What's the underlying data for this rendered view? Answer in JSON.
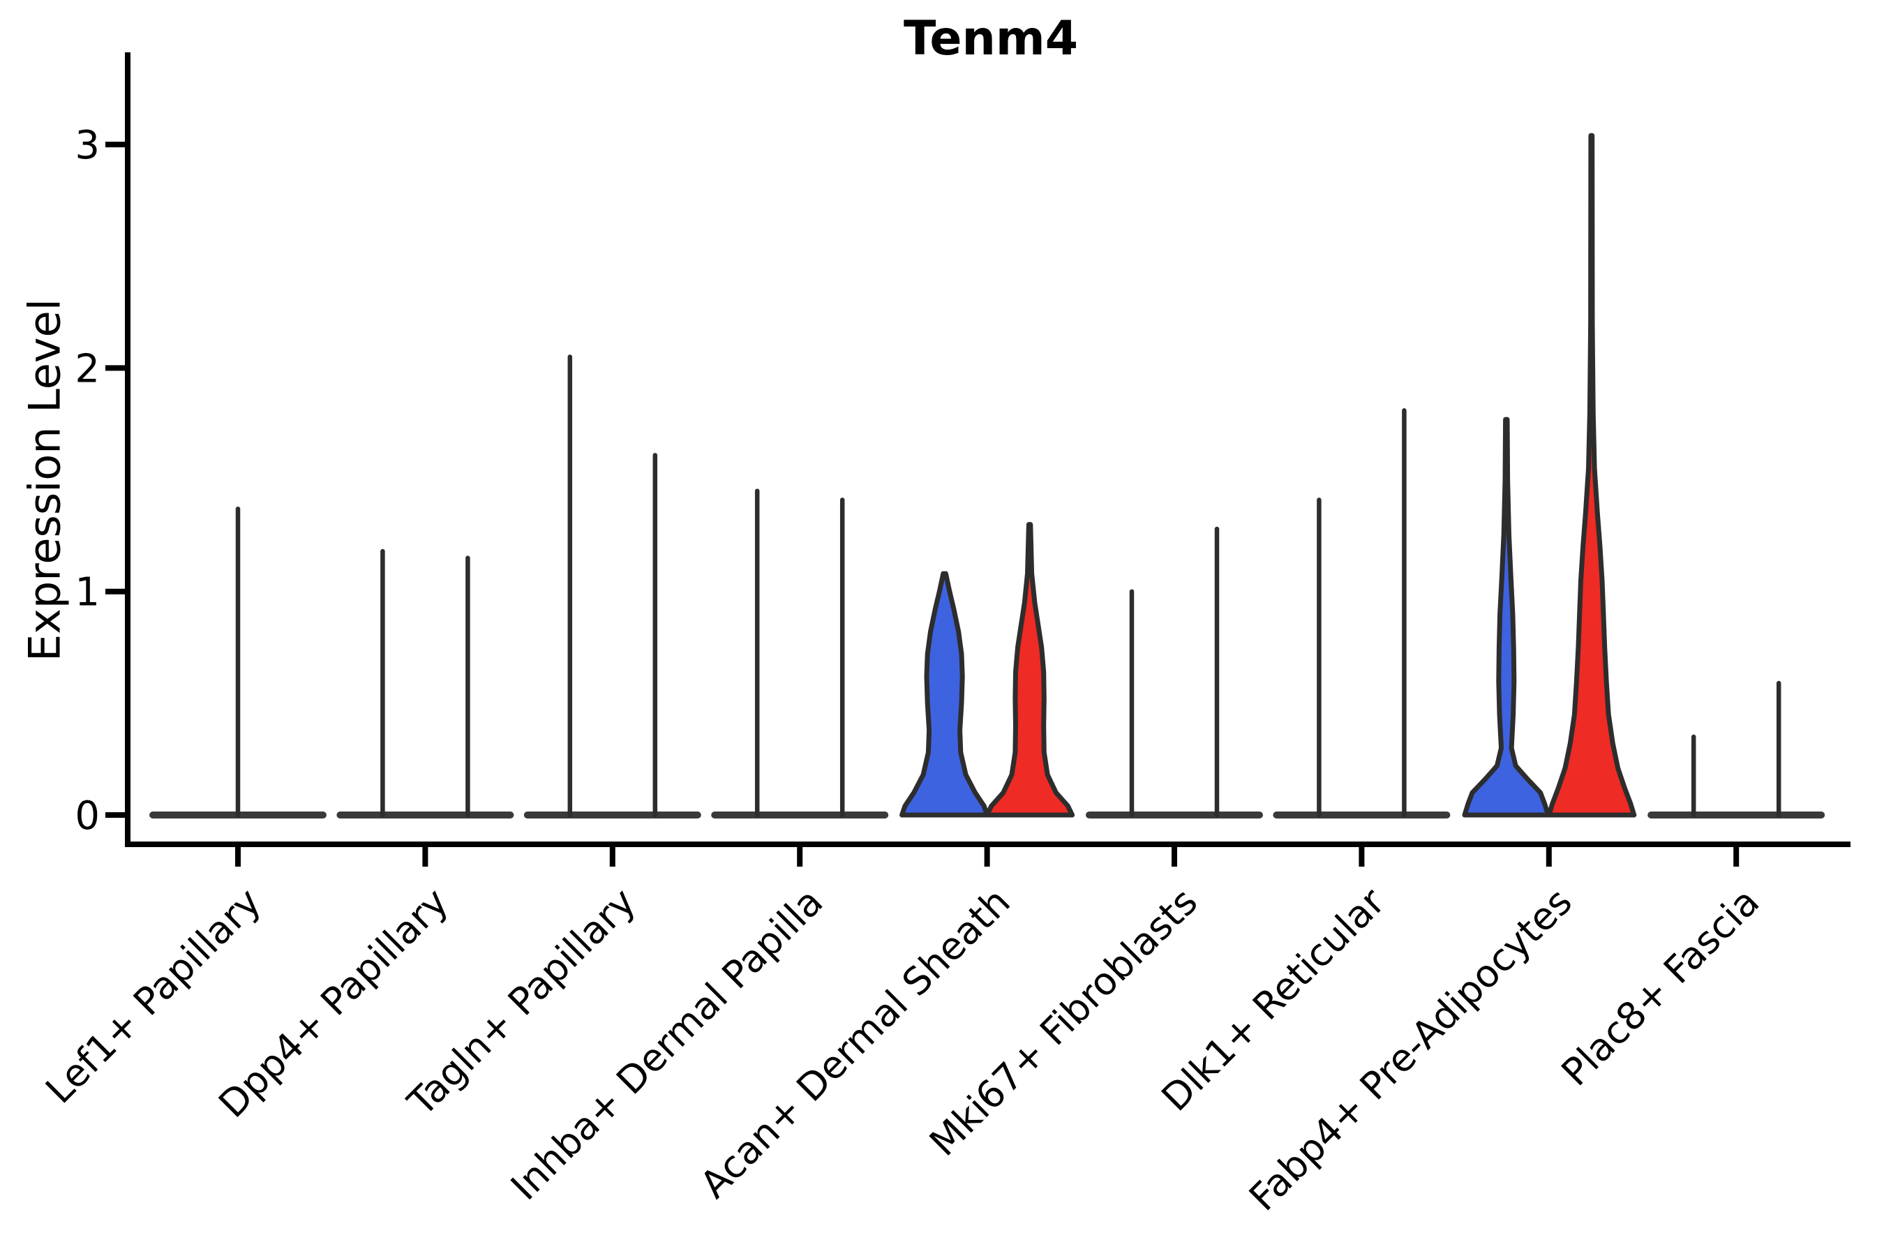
{
  "title": "Tenm4",
  "axes": {
    "ylabel": "Expression Level",
    "ytick_labels": [
      "0",
      "1",
      "2",
      "3"
    ]
  },
  "colors": {
    "blue": "#3E63E0",
    "red": "#EE2B24",
    "outline": "#2D2D2D",
    "baseline": "#3A3A3A",
    "spine": "#000000",
    "text": "#000000",
    "background": "#FFFFFF"
  },
  "chart_data": {
    "type": "violin",
    "title": "Tenm4",
    "xlabel": "",
    "ylabel": "Expression Level",
    "ylim": [
      -0.05,
      3.15
    ],
    "yticks": [
      0,
      1,
      2,
      3
    ],
    "grid": false,
    "legend": "none (two unlabeled conditions: blue, red)",
    "categories": [
      "Lef1+ Papillary",
      "Dpp4+ Papillary",
      "Tagln+ Papillary",
      "Inhba+ Dermal Papilla",
      "Acan+ Dermal Sheath",
      "Mki67+ Fibroblasts",
      "Dlk1+ Reticular",
      "Fabp4+ Pre-Adipocytes",
      "Plac8+ Fascia"
    ],
    "groups": [
      {
        "category": "Lef1+ Papillary",
        "violins": [
          {
            "series": "single",
            "style": "spike",
            "max_expression": 1.37,
            "full_width": true
          }
        ]
      },
      {
        "category": "Dpp4+ Papillary",
        "violins": [
          {
            "series": "blue",
            "style": "spike",
            "max_expression": 1.18
          },
          {
            "series": "red",
            "style": "spike",
            "max_expression": 1.15
          }
        ]
      },
      {
        "category": "Tagln+ Papillary",
        "violins": [
          {
            "series": "blue",
            "style": "spike",
            "max_expression": 2.05
          },
          {
            "series": "red",
            "style": "spike",
            "max_expression": 1.61
          }
        ]
      },
      {
        "category": "Inhba+ Dermal Papilla",
        "violins": [
          {
            "series": "blue",
            "style": "spike",
            "max_expression": 1.45
          },
          {
            "series": "red",
            "style": "spike",
            "max_expression": 1.41
          }
        ]
      },
      {
        "category": "Acan+ Dermal Sheath",
        "violins": [
          {
            "series": "blue",
            "style": "shaped",
            "max_expression": 1.08,
            "profile": [
              [
                0.0,
                1.0
              ],
              [
                0.04,
                0.93
              ],
              [
                0.1,
                0.72
              ],
              [
                0.18,
                0.5
              ],
              [
                0.28,
                0.38
              ],
              [
                0.38,
                0.36
              ],
              [
                0.5,
                0.4
              ],
              [
                0.62,
                0.42
              ],
              [
                0.72,
                0.4
              ],
              [
                0.82,
                0.33
              ],
              [
                0.92,
                0.22
              ],
              [
                1.0,
                0.12
              ],
              [
                1.08,
                0.03
              ]
            ]
          },
          {
            "series": "red",
            "style": "shaped",
            "max_expression": 1.3,
            "profile": [
              [
                0.0,
                1.0
              ],
              [
                0.04,
                0.9
              ],
              [
                0.1,
                0.62
              ],
              [
                0.18,
                0.42
              ],
              [
                0.28,
                0.34
              ],
              [
                0.4,
                0.33
              ],
              [
                0.52,
                0.34
              ],
              [
                0.64,
                0.33
              ],
              [
                0.75,
                0.28
              ],
              [
                0.85,
                0.2
              ],
              [
                0.95,
                0.12
              ],
              [
                1.08,
                0.05
              ],
              [
                1.3,
                0.02
              ]
            ]
          }
        ]
      },
      {
        "category": "Mki67+ Fibroblasts",
        "violins": [
          {
            "series": "blue",
            "style": "spike",
            "max_expression": 1.0
          },
          {
            "series": "red",
            "style": "spike",
            "max_expression": 1.28
          }
        ]
      },
      {
        "category": "Dlk1+ Reticular",
        "violins": [
          {
            "series": "blue",
            "style": "spike",
            "max_expression": 1.41
          },
          {
            "series": "red",
            "style": "spike",
            "max_expression": 1.81
          }
        ]
      },
      {
        "category": "Fabp4+ Pre-Adipocytes",
        "violins": [
          {
            "series": "blue",
            "style": "shaped",
            "max_expression": 1.77,
            "profile": [
              [
                0.0,
                0.98
              ],
              [
                0.05,
                0.9
              ],
              [
                0.1,
                0.8
              ],
              [
                0.16,
                0.5
              ],
              [
                0.22,
                0.22
              ],
              [
                0.3,
                0.12
              ],
              [
                0.45,
                0.16
              ],
              [
                0.6,
                0.18
              ],
              [
                0.75,
                0.17
              ],
              [
                0.9,
                0.15
              ],
              [
                1.05,
                0.11
              ],
              [
                1.25,
                0.06
              ],
              [
                1.5,
                0.03
              ],
              [
                1.77,
                0.02
              ]
            ]
          },
          {
            "series": "red",
            "style": "shaped",
            "max_expression": 3.04,
            "profile": [
              [
                0.0,
                1.0
              ],
              [
                0.05,
                0.92
              ],
              [
                0.12,
                0.78
              ],
              [
                0.21,
                0.62
              ],
              [
                0.32,
                0.5
              ],
              [
                0.45,
                0.4
              ],
              [
                0.6,
                0.35
              ],
              [
                0.75,
                0.31
              ],
              [
                0.9,
                0.28
              ],
              [
                1.05,
                0.25
              ],
              [
                1.2,
                0.2
              ],
              [
                1.35,
                0.14
              ],
              [
                1.55,
                0.07
              ],
              [
                1.8,
                0.04
              ],
              [
                2.2,
                0.02
              ],
              [
                3.04,
                0.015
              ]
            ]
          }
        ]
      },
      {
        "category": "Plac8+ Fascia",
        "violins": [
          {
            "series": "blue",
            "style": "spike",
            "max_expression": 0.35
          },
          {
            "series": "red",
            "style": "spike",
            "max_expression": 0.59
          }
        ]
      }
    ]
  }
}
